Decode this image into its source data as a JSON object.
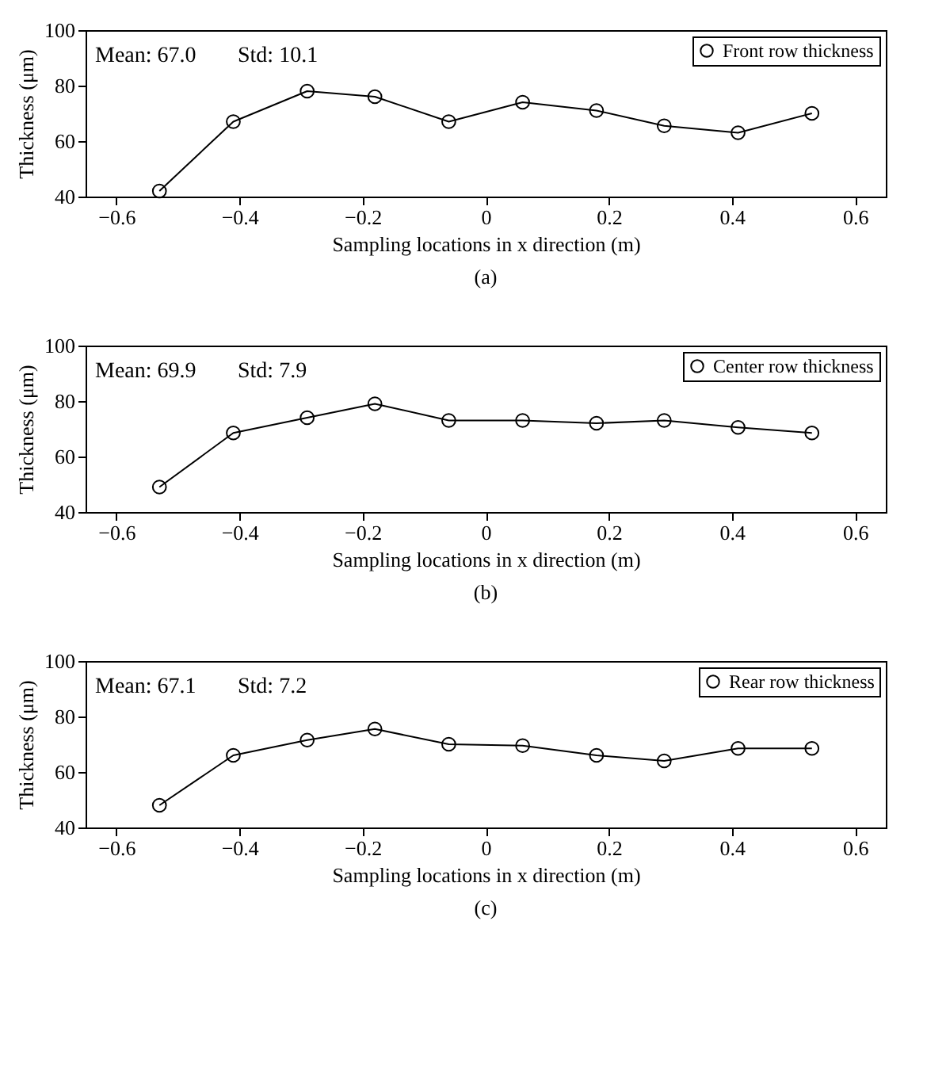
{
  "chart_data": [
    {
      "type": "line",
      "x": [
        -0.53,
        -0.41,
        -0.29,
        -0.18,
        -0.06,
        0.06,
        0.18,
        0.29,
        0.41,
        0.53
      ],
      "series": [
        {
          "name": "Front row thickness",
          "color": "#000000",
          "values": [
            42,
            67,
            78,
            76,
            67,
            74,
            71,
            65.5,
            63,
            70
          ]
        }
      ],
      "xlim": [
        -0.65,
        0.65
      ],
      "xticks": [
        -0.6,
        -0.4,
        -0.2,
        0,
        0.2,
        0.4,
        0.6
      ],
      "ylim": [
        40,
        100
      ],
      "yticks": [
        40,
        60,
        80,
        100
      ],
      "xlabel": "Sampling locations in x direction (m)",
      "ylabel": "Thickness (μm)",
      "annotations": [
        "Mean: 67.0",
        "Std: 10.1",
        "(a)"
      ],
      "legend": "top right",
      "marker": "circle",
      "line_style": "solid"
    },
    {
      "type": "line",
      "x": [
        -0.53,
        -0.41,
        -0.29,
        -0.18,
        -0.06,
        0.06,
        0.18,
        0.29,
        0.41,
        0.53
      ],
      "series": [
        {
          "name": "Center row thickness",
          "color": "#000000",
          "values": [
            49,
            68.5,
            74,
            79,
            73,
            73,
            72,
            73,
            70.5,
            68.5
          ]
        }
      ],
      "xlim": [
        -0.65,
        0.65
      ],
      "xticks": [
        -0.6,
        -0.4,
        -0.2,
        0,
        0.2,
        0.4,
        0.6
      ],
      "ylim": [
        40,
        100
      ],
      "yticks": [
        40,
        60,
        80,
        100
      ],
      "xlabel": "Sampling locations in x direction (m)",
      "ylabel": "Thickness (μm)",
      "annotations": [
        "Mean: 69.9",
        "Std: 7.9",
        "(b)"
      ],
      "legend": "top right",
      "marker": "circle",
      "line_style": "solid"
    },
    {
      "type": "line",
      "x": [
        -0.53,
        -0.41,
        -0.29,
        -0.18,
        -0.06,
        0.06,
        0.18,
        0.29,
        0.41,
        0.53
      ],
      "series": [
        {
          "name": "Rear row thickness",
          "color": "#000000",
          "values": [
            48,
            66,
            71.5,
            75.5,
            70,
            69.5,
            66,
            64,
            68.5,
            68.5
          ]
        }
      ],
      "xlim": [
        -0.65,
        0.65
      ],
      "xticks": [
        -0.6,
        -0.4,
        -0.2,
        0,
        0.2,
        0.4,
        0.6
      ],
      "ylim": [
        40,
        100
      ],
      "yticks": [
        40,
        60,
        80,
        100
      ],
      "xlabel": "Sampling locations in x direction (m)",
      "ylabel": "Thickness (μm)",
      "annotations": [
        "Mean: 67.1",
        "Std: 7.2",
        "(c)"
      ],
      "legend": "top right",
      "marker": "circle",
      "line_style": "solid"
    }
  ]
}
